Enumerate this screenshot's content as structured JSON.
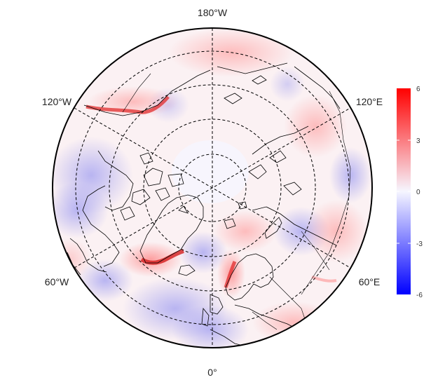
{
  "map": {
    "projection": "north-polar-stereographic",
    "graticule_style": "dashed",
    "longitude_labels": {
      "top": "180°W",
      "upper_left": "120°W",
      "upper_right": "120°E",
      "lower_left": "60°W",
      "lower_right": "60°E",
      "bottom": "0°"
    }
  },
  "colorbar": {
    "ticks": [
      "6",
      "3",
      "0",
      "-3",
      "-6"
    ],
    "colors": {
      "high": "#ff0000",
      "mid": "#f6f6ff",
      "low": "#0000ff"
    }
  }
}
